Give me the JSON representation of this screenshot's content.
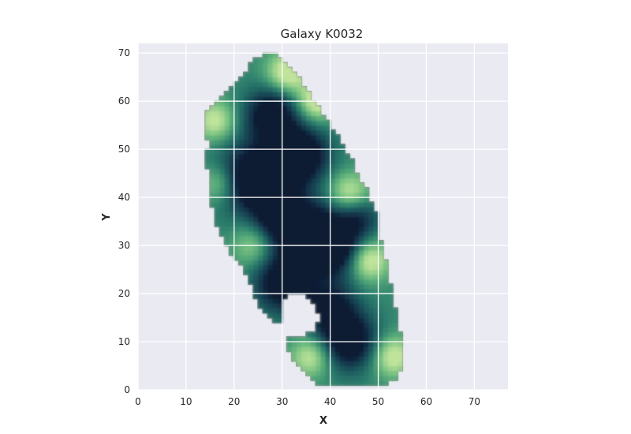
{
  "chart_data": {
    "type": "heatmap",
    "title": "Galaxy K0032",
    "xlabel": "X",
    "ylabel": "Y",
    "xlim": [
      0,
      77
    ],
    "ylim": [
      0,
      72
    ],
    "x_ticks": [
      0,
      10,
      20,
      30,
      40,
      50,
      60,
      70
    ],
    "y_ticks": [
      0,
      10,
      20,
      30,
      40,
      50,
      60,
      70
    ],
    "grid": true,
    "colormap": [
      "#0b1a33",
      "#15384d",
      "#1c5a5e",
      "#2c7d6c",
      "#4fa477",
      "#82c784",
      "#bfe39b"
    ],
    "background": "#eaeaf2",
    "mask_edge_color": "#9a9a9a",
    "outline": [
      [
        27,
        70
      ],
      [
        25,
        69
      ],
      [
        23,
        67
      ],
      [
        22,
        65
      ],
      [
        20,
        63
      ],
      [
        18,
        61
      ],
      [
        16,
        59
      ],
      [
        14,
        57
      ],
      [
        14,
        54
      ],
      [
        15,
        51
      ],
      [
        14,
        48
      ],
      [
        15,
        44
      ],
      [
        15,
        40
      ],
      [
        16,
        36
      ],
      [
        17,
        33
      ],
      [
        19,
        29
      ],
      [
        22,
        25
      ],
      [
        24,
        21
      ],
      [
        25,
        18
      ],
      [
        27,
        15
      ],
      [
        30,
        14
      ],
      [
        30,
        18
      ],
      [
        32,
        20
      ],
      [
        35,
        20
      ],
      [
        37,
        18
      ],
      [
        38,
        15
      ],
      [
        37,
        12
      ],
      [
        34,
        11
      ],
      [
        31,
        11
      ],
      [
        31,
        9
      ],
      [
        32,
        7
      ],
      [
        34,
        5
      ],
      [
        36,
        3
      ],
      [
        38,
        1
      ],
      [
        43,
        1
      ],
      [
        47,
        1
      ],
      [
        51,
        1
      ],
      [
        54,
        2
      ],
      [
        55,
        5
      ],
      [
        55,
        10
      ],
      [
        54,
        15
      ],
      [
        53,
        20
      ],
      [
        52,
        25
      ],
      [
        51,
        30
      ],
      [
        50,
        33
      ],
      [
        50,
        36
      ],
      [
        49,
        38
      ],
      [
        48,
        41
      ],
      [
        46,
        44
      ],
      [
        45,
        47
      ],
      [
        43,
        50
      ],
      [
        42,
        52
      ],
      [
        40,
        55
      ],
      [
        38,
        58
      ],
      [
        36,
        61
      ],
      [
        34,
        64
      ],
      [
        32,
        67
      ],
      [
        30,
        69
      ],
      [
        28,
        70
      ]
    ],
    "dark_blobs": [
      {
        "x": 28,
        "y": 57,
        "sigma": 4,
        "depth": 0.75
      },
      {
        "x": 34,
        "y": 49,
        "sigma": 4,
        "depth": 0.8
      },
      {
        "x": 23,
        "y": 44,
        "sigma": 5,
        "depth": 0.7
      },
      {
        "x": 28,
        "y": 43,
        "sigma": 4,
        "depth": 0.6
      },
      {
        "x": 35,
        "y": 32,
        "sigma": 5,
        "depth": 0.9
      },
      {
        "x": 29,
        "y": 36,
        "sigma": 3,
        "depth": 0.5
      },
      {
        "x": 30,
        "y": 22,
        "sigma": 4,
        "depth": 0.7
      },
      {
        "x": 41,
        "y": 30,
        "sigma": 4,
        "depth": 0.7
      },
      {
        "x": 44,
        "y": 10,
        "sigma": 4,
        "depth": 0.75
      },
      {
        "x": 40,
        "y": 17,
        "sigma": 4,
        "depth": 0.6
      },
      {
        "x": 46,
        "y": 36,
        "sigma": 3,
        "depth": 0.4
      }
    ],
    "bright_blobs": [
      {
        "x": 31,
        "y": 66,
        "sigma": 3,
        "depth": 0.6
      },
      {
        "x": 37,
        "y": 60,
        "sigma": 3,
        "depth": 0.6
      },
      {
        "x": 16,
        "y": 56,
        "sigma": 3,
        "depth": 0.5
      },
      {
        "x": 17,
        "y": 43,
        "sigma": 3,
        "depth": 0.45
      },
      {
        "x": 44,
        "y": 41,
        "sigma": 3,
        "depth": 0.5
      },
      {
        "x": 48,
        "y": 27,
        "sigma": 3,
        "depth": 0.6
      },
      {
        "x": 36,
        "y": 7,
        "sigma": 3,
        "depth": 0.5
      },
      {
        "x": 53,
        "y": 7,
        "sigma": 3,
        "depth": 0.55
      },
      {
        "x": 24,
        "y": 30,
        "sigma": 3,
        "depth": 0.35
      }
    ]
  }
}
